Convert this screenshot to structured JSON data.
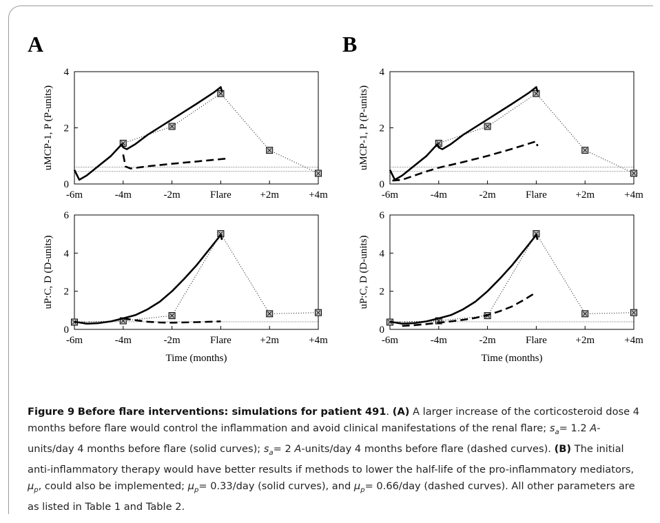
{
  "panel_labels": [
    "A",
    "B"
  ],
  "x_ticks": [
    "-6m",
    "-4m",
    "-2m",
    "Flare",
    "+2m",
    "+4m"
  ],
  "caption": {
    "figure_label": "Figure 9",
    "title": "Before flare interventions: simulations for patient 491",
    "a_label": "(A)",
    "a_text_1": " A larger increase of the corticosteroid dose 4 months before flare would control the inflammation and avoid clinical manifestations of the renal flare; ",
    "a_text_2": "= 1.2 ",
    "a_text_3": "-units/day 4 months before flare (solid curves); ",
    "a_text_4": "= 2 ",
    "a_text_5": "-units/day 4 months before flare (dashed curves). ",
    "b_label": "(B)",
    "b_text_1": " The initial anti-inflammatory therapy would have better results if methods to lower the half-life of the pro-inflammatory mediators, ",
    "b_text_2": ", could also be implemented; ",
    "b_text_3": "= 0.33/day (solid curves), and ",
    "b_text_4": "= 0.66/day (dashed curves). All other parameters are as listed in Table 1 and Table 2.",
    "sym_s": "s",
    "sym_s_sub": "a",
    "sym_A": "A",
    "sym_mu": "μ",
    "sym_mu_sub": "p"
  },
  "chart_data": [
    {
      "panel": "A",
      "position": "top",
      "type": "line",
      "xlabel": "",
      "ylabel": "uMCP-1, P (P-units)",
      "xlim": [
        -6,
        4
      ],
      "ylim": [
        0,
        4
      ],
      "yticks": [
        0,
        2,
        4
      ],
      "reference_lines": [
        0.45,
        0.6
      ],
      "series": [
        {
          "style": "markers-dotted",
          "x": [
            -4,
            -2,
            0,
            2,
            4
          ],
          "y": [
            1.45,
            2.05,
            3.22,
            1.2,
            0.38
          ]
        },
        {
          "style": "solid",
          "x": [
            -6,
            -5.8,
            -5.5,
            -5,
            -4.5,
            -4.05,
            -4,
            -3.85,
            -3.5,
            -3,
            -2,
            -1,
            -0.3,
            0,
            0.05
          ],
          "y": [
            0.5,
            0.15,
            0.3,
            0.65,
            1.0,
            1.42,
            1.3,
            1.24,
            1.42,
            1.75,
            2.3,
            2.85,
            3.25,
            3.45,
            3.28
          ]
        },
        {
          "style": "dashed",
          "x": [
            -4,
            -3.9,
            -3.7,
            -3,
            -2,
            -1,
            0.2
          ],
          "y": [
            1.05,
            0.62,
            0.55,
            0.63,
            0.72,
            0.8,
            0.9
          ]
        }
      ]
    },
    {
      "panel": "A",
      "position": "bottom",
      "type": "line",
      "xlabel": "Time (months)",
      "ylabel": "uP:C, D (D-units)",
      "xlim": [
        -6,
        4
      ],
      "ylim": [
        0,
        6
      ],
      "yticks": [
        0,
        2,
        4,
        6
      ],
      "reference_lines": [
        0.4
      ],
      "series": [
        {
          "style": "markers-dotted",
          "x": [
            -6,
            -4,
            -2,
            0,
            2,
            4
          ],
          "y": [
            0.38,
            0.45,
            0.72,
            5.02,
            0.82,
            0.88
          ]
        },
        {
          "style": "solid",
          "x": [
            -6,
            -5.5,
            -5,
            -4.5,
            -4,
            -3.5,
            -3,
            -2.5,
            -2,
            -1.5,
            -1,
            -0.5,
            0,
            0.05
          ],
          "y": [
            0.4,
            0.3,
            0.33,
            0.42,
            0.58,
            0.75,
            1.05,
            1.45,
            2.0,
            2.65,
            3.35,
            4.15,
            4.95,
            4.7
          ]
        },
        {
          "style": "dashed",
          "x": [
            -4,
            -3.5,
            -3,
            -2.5,
            -2,
            -1,
            0
          ],
          "y": [
            0.58,
            0.48,
            0.4,
            0.36,
            0.35,
            0.38,
            0.42
          ]
        }
      ]
    },
    {
      "panel": "B",
      "position": "top",
      "type": "line",
      "xlabel": "",
      "ylabel": "uMCP-1, P (P-units)",
      "xlim": [
        -6,
        4
      ],
      "ylim": [
        0,
        4
      ],
      "yticks": [
        0,
        2,
        4
      ],
      "reference_lines": [
        0.45,
        0.6
      ],
      "series": [
        {
          "style": "markers-dotted",
          "x": [
            -4,
            -2,
            0,
            2,
            4
          ],
          "y": [
            1.45,
            2.05,
            3.22,
            1.2,
            0.38
          ]
        },
        {
          "style": "solid",
          "x": [
            -6,
            -5.8,
            -5.5,
            -5,
            -4.5,
            -4.05,
            -4,
            -3.85,
            -3.5,
            -3,
            -2,
            -1,
            -0.3,
            0,
            0.05
          ],
          "y": [
            0.5,
            0.15,
            0.3,
            0.65,
            1.0,
            1.42,
            1.3,
            1.24,
            1.42,
            1.75,
            2.3,
            2.85,
            3.25,
            3.45,
            3.28
          ]
        },
        {
          "style": "dashed",
          "x": [
            -5.9,
            -5.5,
            -5,
            -4.5,
            -4,
            -3,
            -2,
            -1,
            0,
            0.05
          ],
          "y": [
            0.12,
            0.15,
            0.3,
            0.45,
            0.58,
            0.78,
            1.0,
            1.25,
            1.52,
            1.35
          ]
        }
      ]
    },
    {
      "panel": "B",
      "position": "bottom",
      "type": "line",
      "xlabel": "Time (months)",
      "ylabel": "uP:C, D (D-units)",
      "xlim": [
        -6,
        4
      ],
      "ylim": [
        0,
        6
      ],
      "yticks": [
        0,
        2,
        4,
        6
      ],
      "reference_lines": [
        0.4
      ],
      "series": [
        {
          "style": "markers-dotted",
          "x": [
            -6,
            -4,
            -2,
            0,
            2,
            4
          ],
          "y": [
            0.38,
            0.45,
            0.72,
            5.02,
            0.82,
            0.88
          ]
        },
        {
          "style": "solid",
          "x": [
            -6,
            -5.5,
            -5,
            -4.5,
            -4,
            -3.5,
            -3,
            -2.5,
            -2,
            -1.5,
            -1,
            -0.5,
            0,
            0.05
          ],
          "y": [
            0.4,
            0.3,
            0.33,
            0.42,
            0.58,
            0.75,
            1.05,
            1.45,
            2.0,
            2.65,
            3.35,
            4.15,
            4.95,
            4.7
          ]
        },
        {
          "style": "dashed",
          "x": [
            -5.5,
            -5,
            -4.5,
            -4,
            -3.5,
            -3,
            -2.5,
            -2,
            -1.5,
            -1,
            -0.5,
            0
          ],
          "y": [
            0.18,
            0.22,
            0.28,
            0.35,
            0.42,
            0.5,
            0.6,
            0.75,
            0.95,
            1.2,
            1.55,
            1.95
          ]
        }
      ]
    }
  ]
}
